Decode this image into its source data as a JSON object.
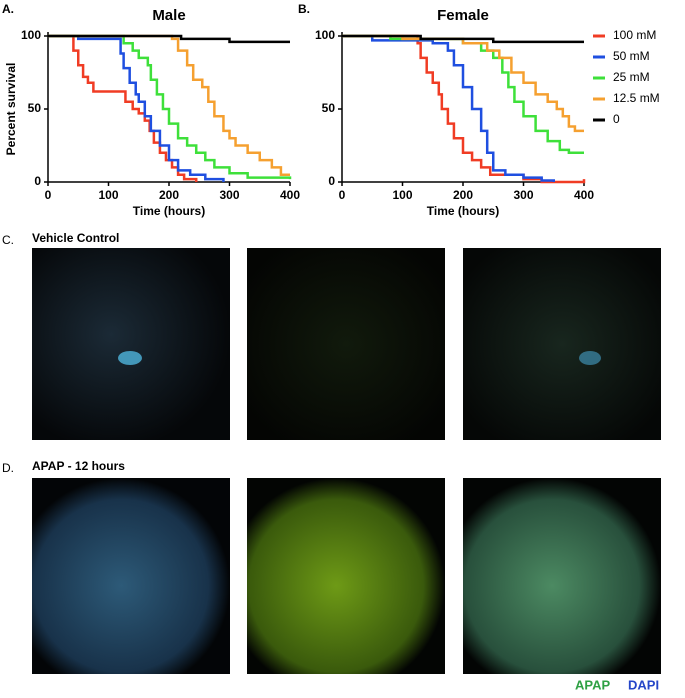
{
  "chart_data": [
    {
      "type": "line",
      "step": true,
      "panel_label": "A.",
      "title": "Male",
      "y_label": "Percent survival",
      "x_label": "Time (hours)",
      "xlim": [
        0,
        400
      ],
      "ylim": [
        0,
        100
      ],
      "xticks": [
        0,
        100,
        200,
        300,
        400
      ],
      "yticks": [
        0,
        50,
        100
      ],
      "series": [
        {
          "name": "100 mM",
          "color": "#f03c24",
          "x": [
            0,
            42,
            50,
            58,
            66,
            75,
            120,
            128,
            140,
            150,
            160,
            168,
            175,
            185,
            195,
            205,
            215,
            225,
            245
          ],
          "values": [
            100,
            90,
            80,
            72,
            68,
            62,
            62,
            55,
            50,
            47,
            42,
            35,
            27,
            20,
            15,
            10,
            5,
            2,
            0
          ]
        },
        {
          "name": "50 mM",
          "color": "#1f4fe0",
          "x": [
            0,
            50,
            115,
            120,
            125,
            135,
            145,
            150,
            160,
            170,
            185,
            200,
            215,
            235,
            260,
            290
          ],
          "values": [
            100,
            98,
            98,
            88,
            78,
            68,
            60,
            55,
            45,
            35,
            25,
            15,
            8,
            5,
            2,
            0
          ]
        },
        {
          "name": "25 mM",
          "color": "#3ee03a",
          "x": [
            0,
            120,
            125,
            140,
            150,
            165,
            170,
            180,
            190,
            200,
            215,
            230,
            245,
            260,
            275,
            300,
            330,
            400
          ],
          "values": [
            100,
            100,
            95,
            90,
            85,
            80,
            70,
            60,
            50,
            40,
            30,
            25,
            20,
            15,
            10,
            6,
            3,
            2
          ]
        },
        {
          "name": "12.5 mM",
          "color": "#f5a030",
          "x": [
            0,
            200,
            205,
            215,
            230,
            240,
            255,
            265,
            275,
            290,
            300,
            310,
            330,
            350,
            370,
            385,
            400
          ],
          "values": [
            100,
            100,
            98,
            90,
            80,
            70,
            65,
            55,
            45,
            35,
            30,
            25,
            20,
            15,
            10,
            5,
            5
          ]
        },
        {
          "name": "0",
          "color": "#000000",
          "x": [
            0,
            220,
            300,
            400
          ],
          "values": [
            100,
            98,
            96,
            96
          ]
        }
      ]
    },
    {
      "type": "line",
      "step": true,
      "panel_label": "B.",
      "title": "Female",
      "x_label": "Time (hours)",
      "xlim": [
        0,
        400
      ],
      "ylim": [
        0,
        100
      ],
      "xticks": [
        0,
        100,
        200,
        300,
        400
      ],
      "yticks": [
        0,
        50,
        100
      ],
      "series": [
        {
          "color": "#f03c24",
          "x": [
            0,
            120,
            125,
            130,
            140,
            150,
            160,
            165,
            175,
            185,
            200,
            215,
            230,
            245,
            300,
            330,
            400
          ],
          "values": [
            100,
            100,
            95,
            85,
            75,
            68,
            60,
            50,
            40,
            30,
            20,
            15,
            10,
            5,
            2,
            0,
            2
          ]
        },
        {
          "color": "#1f4fe0",
          "x": [
            0,
            50,
            120,
            150,
            175,
            185,
            200,
            215,
            230,
            240,
            250,
            270,
            300,
            330,
            350
          ],
          "values": [
            100,
            97,
            97,
            95,
            90,
            80,
            65,
            50,
            35,
            20,
            8,
            5,
            3,
            1,
            0
          ]
        },
        {
          "color": "#3ee03a",
          "x": [
            0,
            80,
            200,
            230,
            250,
            265,
            275,
            285,
            300,
            320,
            340,
            360,
            375,
            400
          ],
          "values": [
            100,
            98,
            95,
            90,
            85,
            75,
            65,
            55,
            45,
            35,
            28,
            22,
            20,
            20
          ]
        },
        {
          "color": "#f5a030",
          "x": [
            0,
            100,
            200,
            240,
            260,
            280,
            300,
            320,
            340,
            355,
            365,
            375,
            385,
            400
          ],
          "values": [
            100,
            98,
            95,
            90,
            85,
            75,
            68,
            60,
            55,
            50,
            45,
            38,
            35,
            35
          ]
        },
        {
          "color": "#000000",
          "x": [
            0,
            130,
            250,
            400
          ],
          "values": [
            100,
            98,
            96,
            96
          ]
        }
      ]
    }
  ],
  "panels": {
    "C": {
      "label": "C.",
      "title": "Vehicle Control"
    },
    "D": {
      "label": "D.",
      "title": "APAP - 12 hours"
    }
  },
  "footer": {
    "apap": "APAP",
    "dapi": "DAPI"
  }
}
